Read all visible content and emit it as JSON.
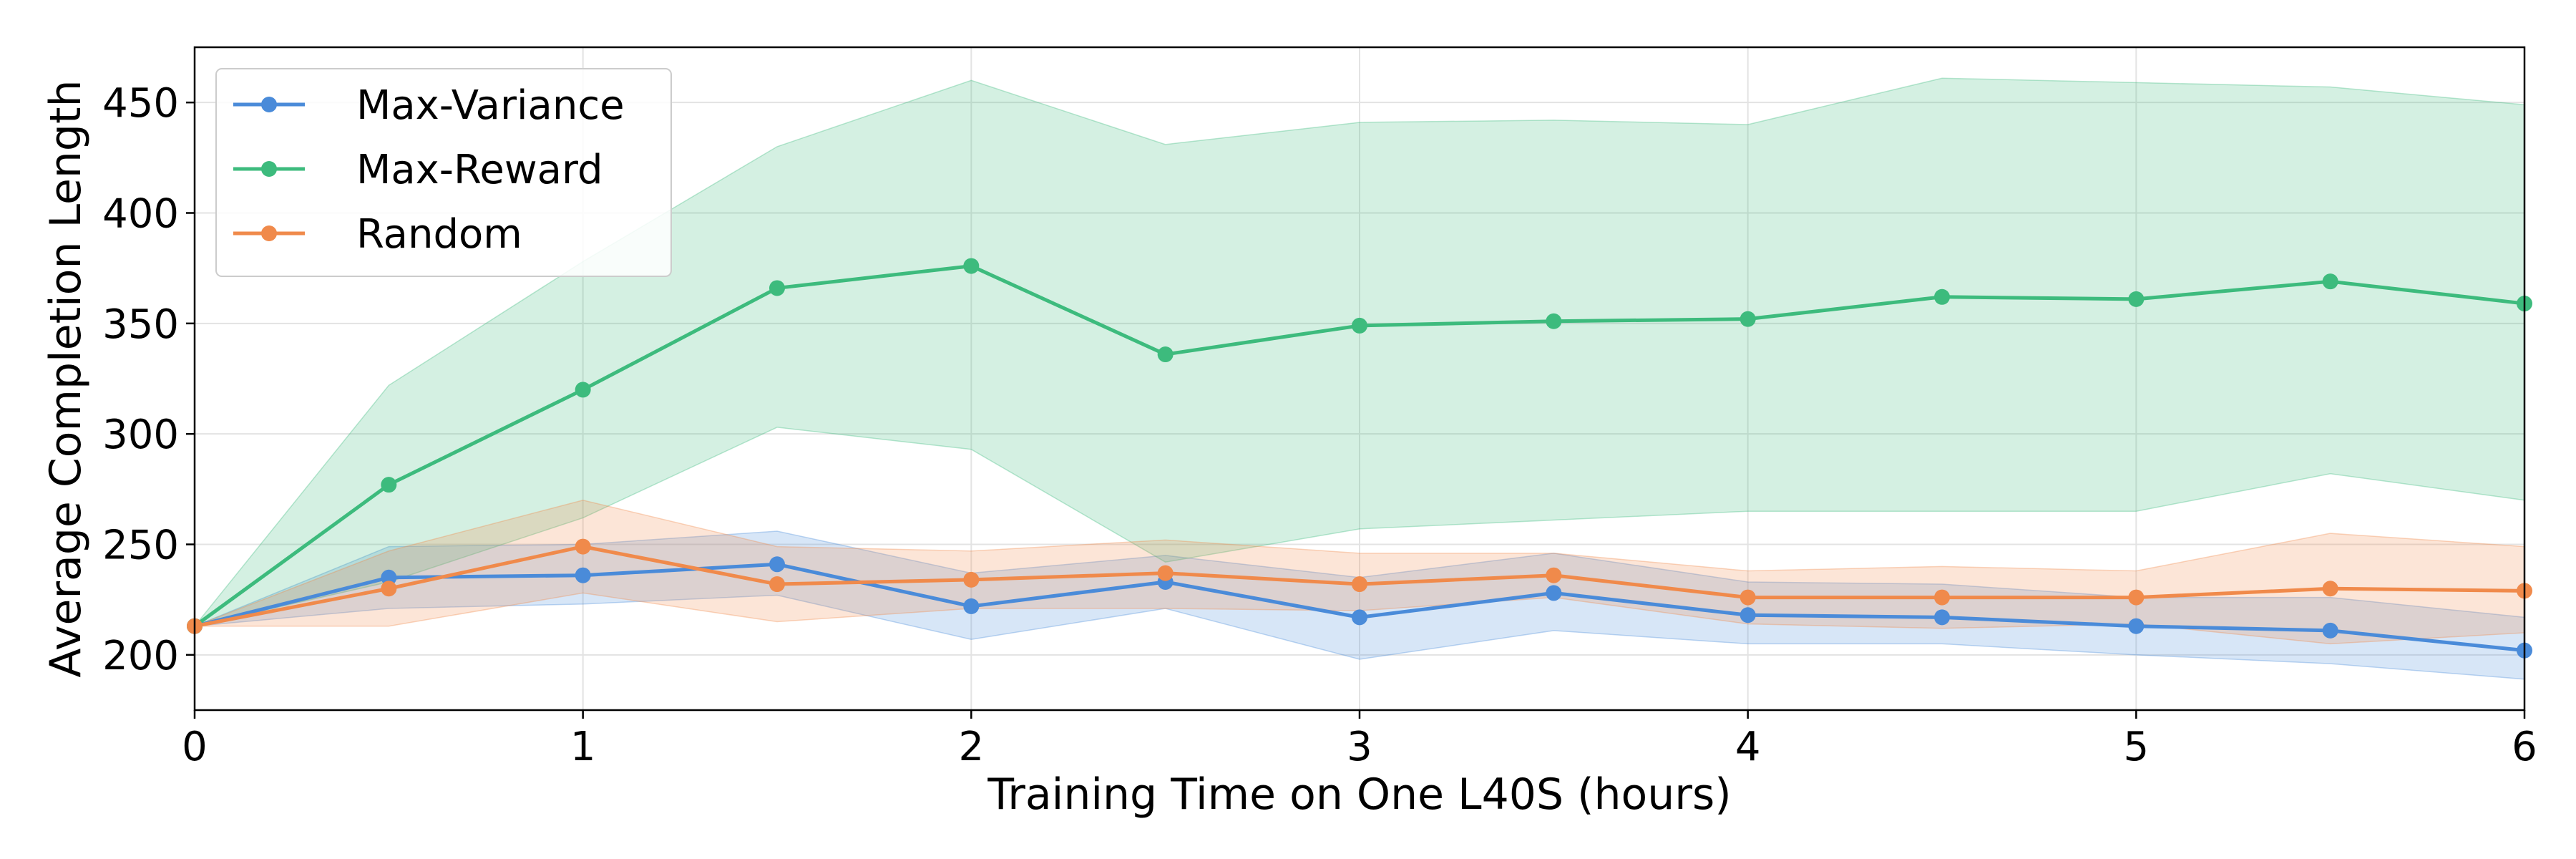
{
  "chart_data": {
    "type": "line",
    "title": "",
    "xlabel": "Training Time on One L40S (hours)",
    "ylabel": "Average Completion Length",
    "xlim": [
      0,
      6
    ],
    "ylim": [
      175,
      475
    ],
    "xticks": [
      0,
      1,
      2,
      3,
      4,
      5,
      6
    ],
    "yticks": [
      200,
      250,
      300,
      350,
      400,
      450
    ],
    "grid": true,
    "legend_position": "top-left",
    "x": [
      0,
      0.5,
      1,
      1.5,
      2,
      2.5,
      3,
      3.5,
      4,
      4.5,
      5,
      5.5,
      6
    ],
    "series": [
      {
        "name": "Max-Variance",
        "color": "#4a8bd9",
        "values": [
          213,
          235,
          236,
          241,
          222,
          233,
          217,
          228,
          218,
          217,
          213,
          211,
          202
        ],
        "lower": [
          213,
          221,
          223,
          227,
          207,
          221,
          198,
          211,
          205,
          205,
          200,
          196,
          189
        ],
        "upper": [
          213,
          249,
          250,
          256,
          237,
          245,
          235,
          246,
          233,
          232,
          226,
          226,
          217
        ]
      },
      {
        "name": "Max-Reward",
        "color": "#3dbb7d",
        "values": [
          213,
          277,
          320,
          366,
          376,
          336,
          349,
          351,
          352,
          362,
          361,
          369,
          359
        ],
        "lower": [
          213,
          233,
          262,
          303,
          293,
          242,
          257,
          261,
          265,
          265,
          265,
          282,
          270
        ],
        "upper": [
          213,
          322,
          378,
          430,
          460,
          431,
          441,
          442,
          440,
          461,
          459,
          457,
          449
        ]
      },
      {
        "name": "Random",
        "color": "#f08a4b",
        "values": [
          213,
          230,
          249,
          232,
          234,
          237,
          232,
          236,
          226,
          226,
          226,
          230,
          229
        ],
        "lower": [
          213,
          213,
          228,
          215,
          221,
          221,
          220,
          226,
          214,
          212,
          214,
          205,
          210
        ],
        "upper": [
          213,
          247,
          270,
          249,
          247,
          252,
          246,
          246,
          238,
          240,
          238,
          255,
          249
        ]
      }
    ]
  }
}
